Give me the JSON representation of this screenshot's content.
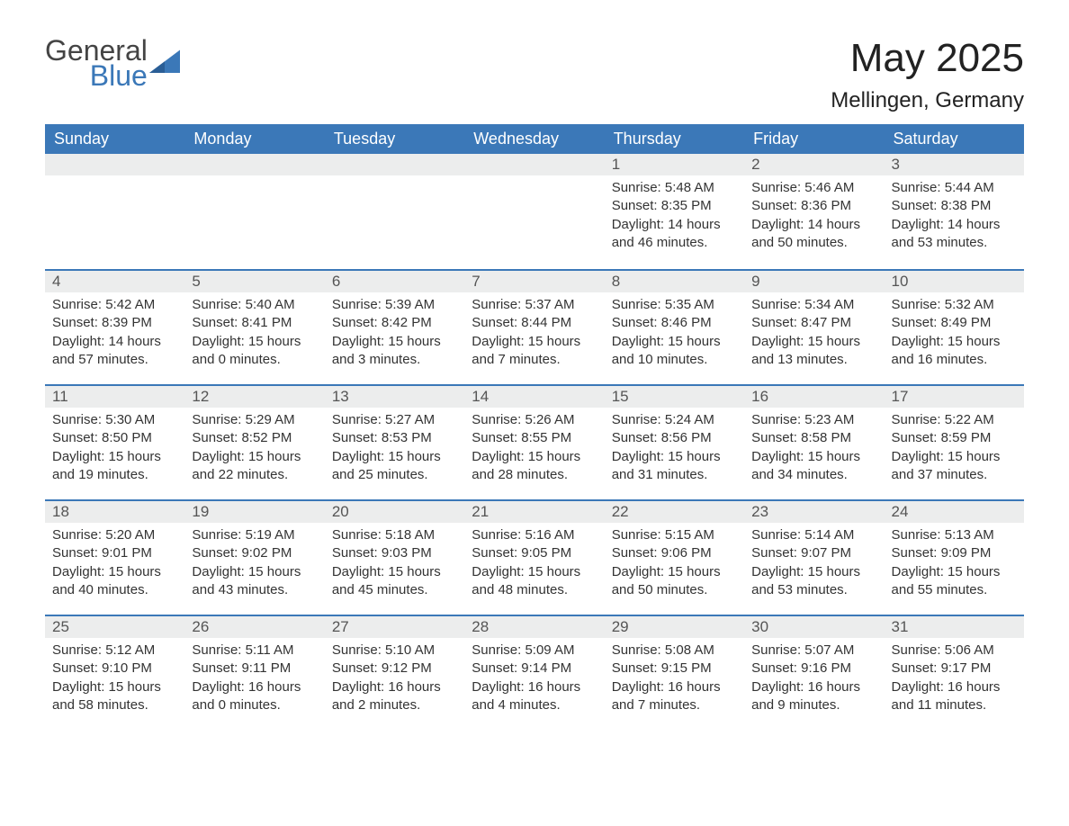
{
  "brand": {
    "word1": "General",
    "word2": "Blue",
    "accent_color": "#3b78b8"
  },
  "title": "May 2025",
  "location": "Mellingen, Germany",
  "colors": {
    "header_bg": "#3b78b8",
    "header_text": "#ffffff",
    "strip_bg": "#eceded",
    "body_text": "#333333",
    "background": "#ffffff"
  },
  "typography": {
    "title_fontsize": 44,
    "location_fontsize": 24,
    "header_fontsize": 18,
    "cell_fontsize": 15
  },
  "columns": [
    "Sunday",
    "Monday",
    "Tuesday",
    "Wednesday",
    "Thursday",
    "Friday",
    "Saturday"
  ],
  "labels": {
    "sunrise": "Sunrise",
    "sunset": "Sunset",
    "daylight": "Daylight"
  },
  "weeks": [
    [
      {
        "empty": true
      },
      {
        "empty": true
      },
      {
        "empty": true
      },
      {
        "empty": true
      },
      {
        "n": "1",
        "sunrise": "5:48 AM",
        "sunset": "8:35 PM",
        "daylight": "14 hours and 46 minutes."
      },
      {
        "n": "2",
        "sunrise": "5:46 AM",
        "sunset": "8:36 PM",
        "daylight": "14 hours and 50 minutes."
      },
      {
        "n": "3",
        "sunrise": "5:44 AM",
        "sunset": "8:38 PM",
        "daylight": "14 hours and 53 minutes."
      }
    ],
    [
      {
        "n": "4",
        "sunrise": "5:42 AM",
        "sunset": "8:39 PM",
        "daylight": "14 hours and 57 minutes."
      },
      {
        "n": "5",
        "sunrise": "5:40 AM",
        "sunset": "8:41 PM",
        "daylight": "15 hours and 0 minutes."
      },
      {
        "n": "6",
        "sunrise": "5:39 AM",
        "sunset": "8:42 PM",
        "daylight": "15 hours and 3 minutes."
      },
      {
        "n": "7",
        "sunrise": "5:37 AM",
        "sunset": "8:44 PM",
        "daylight": "15 hours and 7 minutes."
      },
      {
        "n": "8",
        "sunrise": "5:35 AM",
        "sunset": "8:46 PM",
        "daylight": "15 hours and 10 minutes."
      },
      {
        "n": "9",
        "sunrise": "5:34 AM",
        "sunset": "8:47 PM",
        "daylight": "15 hours and 13 minutes."
      },
      {
        "n": "10",
        "sunrise": "5:32 AM",
        "sunset": "8:49 PM",
        "daylight": "15 hours and 16 minutes."
      }
    ],
    [
      {
        "n": "11",
        "sunrise": "5:30 AM",
        "sunset": "8:50 PM",
        "daylight": "15 hours and 19 minutes."
      },
      {
        "n": "12",
        "sunrise": "5:29 AM",
        "sunset": "8:52 PM",
        "daylight": "15 hours and 22 minutes."
      },
      {
        "n": "13",
        "sunrise": "5:27 AM",
        "sunset": "8:53 PM",
        "daylight": "15 hours and 25 minutes."
      },
      {
        "n": "14",
        "sunrise": "5:26 AM",
        "sunset": "8:55 PM",
        "daylight": "15 hours and 28 minutes."
      },
      {
        "n": "15",
        "sunrise": "5:24 AM",
        "sunset": "8:56 PM",
        "daylight": "15 hours and 31 minutes."
      },
      {
        "n": "16",
        "sunrise": "5:23 AM",
        "sunset": "8:58 PM",
        "daylight": "15 hours and 34 minutes."
      },
      {
        "n": "17",
        "sunrise": "5:22 AM",
        "sunset": "8:59 PM",
        "daylight": "15 hours and 37 minutes."
      }
    ],
    [
      {
        "n": "18",
        "sunrise": "5:20 AM",
        "sunset": "9:01 PM",
        "daylight": "15 hours and 40 minutes."
      },
      {
        "n": "19",
        "sunrise": "5:19 AM",
        "sunset": "9:02 PM",
        "daylight": "15 hours and 43 minutes."
      },
      {
        "n": "20",
        "sunrise": "5:18 AM",
        "sunset": "9:03 PM",
        "daylight": "15 hours and 45 minutes."
      },
      {
        "n": "21",
        "sunrise": "5:16 AM",
        "sunset": "9:05 PM",
        "daylight": "15 hours and 48 minutes."
      },
      {
        "n": "22",
        "sunrise": "5:15 AM",
        "sunset": "9:06 PM",
        "daylight": "15 hours and 50 minutes."
      },
      {
        "n": "23",
        "sunrise": "5:14 AM",
        "sunset": "9:07 PM",
        "daylight": "15 hours and 53 minutes."
      },
      {
        "n": "24",
        "sunrise": "5:13 AM",
        "sunset": "9:09 PM",
        "daylight": "15 hours and 55 minutes."
      }
    ],
    [
      {
        "n": "25",
        "sunrise": "5:12 AM",
        "sunset": "9:10 PM",
        "daylight": "15 hours and 58 minutes."
      },
      {
        "n": "26",
        "sunrise": "5:11 AM",
        "sunset": "9:11 PM",
        "daylight": "16 hours and 0 minutes."
      },
      {
        "n": "27",
        "sunrise": "5:10 AM",
        "sunset": "9:12 PM",
        "daylight": "16 hours and 2 minutes."
      },
      {
        "n": "28",
        "sunrise": "5:09 AM",
        "sunset": "9:14 PM",
        "daylight": "16 hours and 4 minutes."
      },
      {
        "n": "29",
        "sunrise": "5:08 AM",
        "sunset": "9:15 PM",
        "daylight": "16 hours and 7 minutes."
      },
      {
        "n": "30",
        "sunrise": "5:07 AM",
        "sunset": "9:16 PM",
        "daylight": "16 hours and 9 minutes."
      },
      {
        "n": "31",
        "sunrise": "5:06 AM",
        "sunset": "9:17 PM",
        "daylight": "16 hours and 11 minutes."
      }
    ]
  ]
}
